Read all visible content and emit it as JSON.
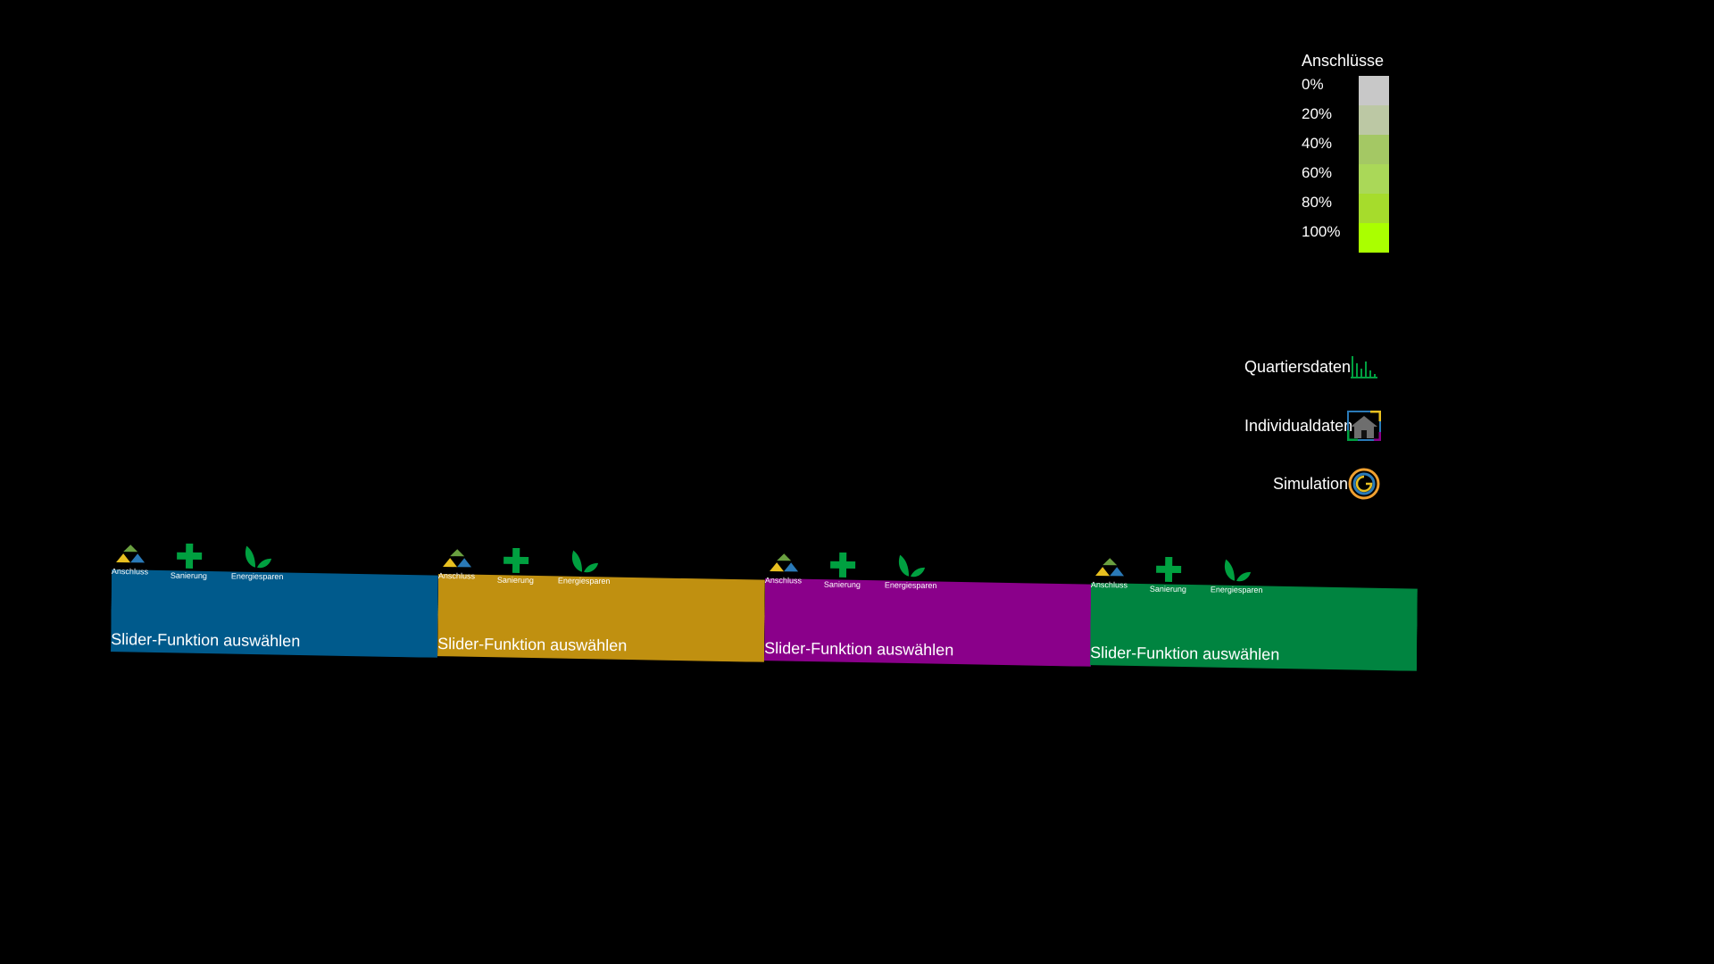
{
  "legend": {
    "title": "Anschlüsse",
    "steps": [
      {
        "label": "0%",
        "color": "#c8c8c8"
      },
      {
        "label": "20%",
        "color": "#bcc8a4"
      },
      {
        "label": "40%",
        "color": "#a4c864"
      },
      {
        "label": "60%",
        "color": "#aad858"
      },
      {
        "label": "80%",
        "color": "#a6dc2c"
      },
      {
        "label": "100%",
        "color": "#aaff00"
      }
    ]
  },
  "nav": {
    "quartiersdaten": "Quartiersdaten",
    "individualdaten": "Individualdaten",
    "simulation": "Simulation"
  },
  "sliders": [
    {
      "text": "Slider-Funktion auswählen",
      "color": "#005a8c"
    },
    {
      "text": "Slider-Funktion auswählen",
      "color": "#c09010"
    },
    {
      "text": "Slider-Funktion auswählen",
      "color": "#8a008a"
    },
    {
      "text": "Slider-Funktion auswählen",
      "color": "#008440"
    }
  ],
  "tools": {
    "anschluss": "Anschluss",
    "sanierung": "Sanierung",
    "energiesparen": "Energiesparen"
  },
  "colors": {
    "tool_green": "#00a040",
    "tri_yellow": "#e8c020",
    "tri_blue": "#2a7ab8",
    "tri_green": "#6aa040"
  }
}
